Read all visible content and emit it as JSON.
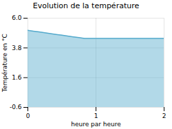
{
  "chart_data": {
    "type": "area",
    "title": "Evolution de la température",
    "xlabel": "heure par heure",
    "ylabel": "Température en °C",
    "x": [
      0,
      0.083,
      0.167,
      0.25,
      0.333,
      0.417,
      0.5,
      0.583,
      0.667,
      0.75,
      0.833,
      0.917,
      1.0,
      1.083,
      1.167,
      1.25,
      1.333,
      1.417,
      1.5,
      1.583,
      1.667,
      1.75,
      1.833,
      1.917,
      2.0
    ],
    "values": [
      5.1,
      5.04,
      4.98,
      4.92,
      4.86,
      4.8,
      4.74,
      4.68,
      4.62,
      4.56,
      4.5,
      4.5,
      4.5,
      4.5,
      4.5,
      4.5,
      4.5,
      4.5,
      4.5,
      4.5,
      4.5,
      4.5,
      4.5,
      4.5,
      4.5
    ],
    "baseline": -0.6,
    "color": "#55aacc",
    "xlim": [
      0,
      2
    ],
    "xticks": [
      0,
      1,
      2
    ],
    "ylim": [
      -0.6,
      6.0
    ],
    "yticks": [
      -0.6,
      1.6,
      3.8,
      {
        "value": 6.0,
        "label": "6.0"
      }
    ],
    "grid": true
  }
}
